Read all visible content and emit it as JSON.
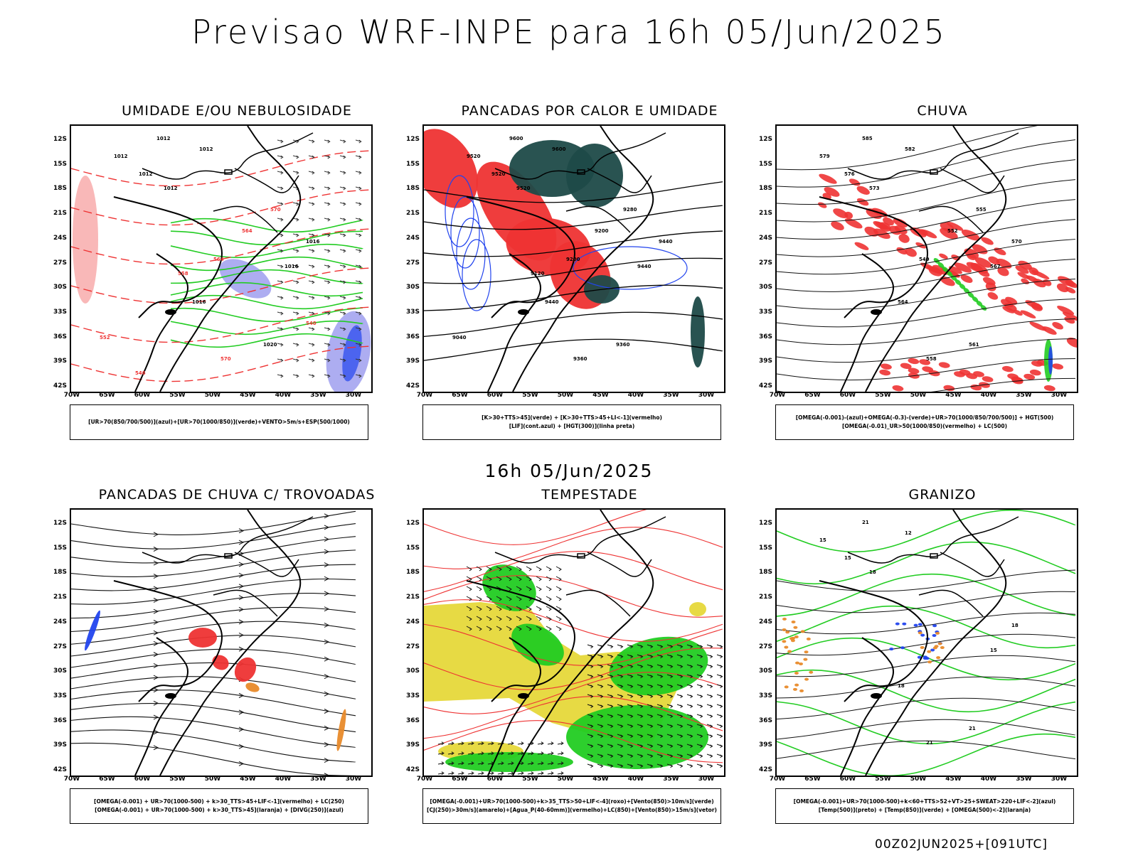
{
  "header": {
    "title": "Previsao WRF-INPE  para 16h 05/Jun/2025"
  },
  "middle": {
    "subtitle": "16h 05/Jun/2025"
  },
  "footer": {
    "run": "00Z02JUN2025+[091UTC]"
  },
  "axes": {
    "lat_labels": [
      "12S",
      "15S",
      "18S",
      "21S",
      "24S",
      "27S",
      "30S",
      "33S",
      "36S",
      "39S",
      "42S"
    ],
    "lon_labels": [
      "70W",
      "65W",
      "60W",
      "55W",
      "50W",
      "45W",
      "40W",
      "35W",
      "30W"
    ]
  },
  "colors": {
    "green": "#22cc22",
    "red": "#ee3333",
    "blue": "#2244ee",
    "darkteal": "#1e4a48",
    "yellow": "#e6d83a",
    "orange": "#e88a2a",
    "lightblue": "#9999ee"
  },
  "panels": [
    {
      "title": "UMIDADE E/OU NEBULOSIDADE",
      "legend": [
        "[UR>70(850/700/500)](azul)+[UR>70(1000/850)](verde)+VENTO>5m/s+ESP(500/1000)"
      ],
      "contour_labels": [
        "1012",
        "1012",
        "1012",
        "1012",
        "1012",
        "1016",
        "1016",
        "1016",
        "1020",
        "570",
        "570",
        "564",
        "564",
        "558",
        "552",
        "546",
        "540"
      ]
    },
    {
      "title": "PANCADAS POR CALOR E UMIDADE",
      "legend": [
        "[K>30+TTS>45](verde) + [K>30+TTS>45+LI<-1](vermelho)",
        "[LIF](cont.azul) + [HGT(300)](linha preta)"
      ],
      "contour_labels": [
        "9600",
        "9600",
        "9520",
        "9520",
        "9520",
        "9440",
        "9440",
        "9440",
        "9360",
        "9360",
        "9280",
        "9200",
        "9200",
        "9120",
        "9040"
      ]
    },
    {
      "title": "CHUVA",
      "legend": [
        "[OMEGA(-0.001)-(azul)+OMEGA(-0.3)-(verde)+UR>70(1000/850/700/500)] + HGT(500)",
        "[OMEGA(-0.01)_UR>50(1000/850)(vermelho) + LC(500)"
      ],
      "contour_labels": [
        "585",
        "582",
        "579",
        "576",
        "573",
        "570",
        "567",
        "564",
        "561",
        "558",
        "555",
        "552",
        "549"
      ]
    },
    {
      "title": "PANCADAS DE CHUVA C/ TROVOADAS",
      "legend": [
        "[OMEGA(-0.001) + UR>70(1000-500) + k>30_TTS>45+LIF<-1](vermelho) + LC(250)",
        "[OMEGA(-0.001) + UR>70(1000-500) + k>30_TTS>45](laranja) + [DIVG(250)](azul)"
      ],
      "contour_labels": []
    },
    {
      "title": "TEMPESTADE",
      "legend": [
        "[OMEGA(-0.001)+UR>70(1000-500)+k>35_TTS>50+LIF<-4](roxo)+[Vento(850)>10m/s](verde)",
        "[CJ(250)>30m/s](amarelo)+[Agua_P(40-60mm)](vermelho)+LC(850)+[Vento(850)>15m/s](vetor)"
      ],
      "contour_labels": []
    },
    {
      "title": "GRANIZO",
      "legend": [
        "[OMEGA(-0.001)+UR>70(1000-500)+k<60+TTS>52+VT>25+SWEAT>220+LIF<-2](azul)",
        "[Temp(500)](preto) + [Temp(850)](verde) + [OMEGA(500)<-2](laranja)"
      ],
      "contour_labels": [
        "21",
        "12",
        "15",
        "15",
        "18",
        "18",
        "15",
        "18",
        "21",
        "21"
      ]
    }
  ]
}
